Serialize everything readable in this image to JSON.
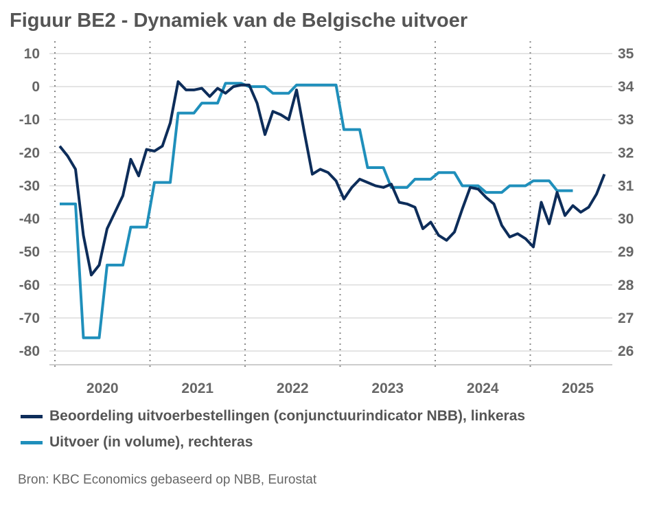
{
  "chart_data": {
    "type": "line",
    "title": "Figuur BE2 - Dynamiek van de Belgische uitvoer",
    "x_categories": [
      "2020",
      "2021",
      "2022",
      "2023",
      "2024",
      "2025"
    ],
    "left_axis": {
      "ylim": [
        -80,
        10
      ],
      "ticks": [
        "10",
        "0",
        "-10",
        "-20",
        "-30",
        "-40",
        "-50",
        "-60",
        "-70",
        "-80"
      ]
    },
    "right_axis": {
      "ylim": [
        26,
        35
      ],
      "ticks": [
        "35",
        "34",
        "33",
        "32",
        "31",
        "30",
        "29",
        "28",
        "27",
        "26"
      ]
    },
    "series": [
      {
        "name": "Beoordeling uitvoerbestellingen (conjunctuurindicator NBB), linkeras",
        "axis": "left",
        "color": "#0d2d5a",
        "frequency": "monthly",
        "start": "2020-01",
        "values": [
          -18,
          -21,
          -25,
          -45,
          -57,
          -54,
          -43,
          -38,
          -33,
          -22,
          -27,
          -19,
          -19.5,
          -18,
          -11,
          1.5,
          -1,
          -1,
          -0.5,
          -3,
          -0.5,
          -2,
          0,
          0.5,
          0.5,
          -5,
          -14.5,
          -7.5,
          -8.5,
          -10,
          -1,
          -14,
          -26.5,
          -25,
          -26,
          -28.5,
          -34,
          -30.5,
          -28,
          -29,
          -30,
          -30.5,
          -29.5,
          -35,
          -35.5,
          -36.5,
          -43,
          -41,
          -45,
          -46.5,
          -44,
          -37,
          -30.5,
          -31,
          -33.5,
          -35.5,
          -42,
          -45.5,
          -44.5,
          -46,
          -48.5,
          -35,
          -41.5,
          -32,
          -39,
          -36,
          -38,
          -36.5,
          -32.5,
          -26.5
        ]
      },
      {
        "name": "Uitvoer (in volume), rechteras",
        "axis": "right",
        "color": "#1f8fbb",
        "frequency": "quarterly",
        "start": "2020-Q1",
        "values": [
          30.45,
          26.4,
          28.6,
          29.75,
          31.1,
          33.2,
          33.5,
          34.1,
          34.0,
          33.8,
          34.05,
          34.05,
          32.7,
          31.55,
          30.95,
          31.2,
          31.4,
          31.0,
          30.8,
          31.0,
          31.15,
          30.85
        ]
      }
    ],
    "grid": true,
    "legend_placement": "bottom"
  },
  "source": "Bron: KBC Economics gebaseerd op NBB, Eurostat"
}
